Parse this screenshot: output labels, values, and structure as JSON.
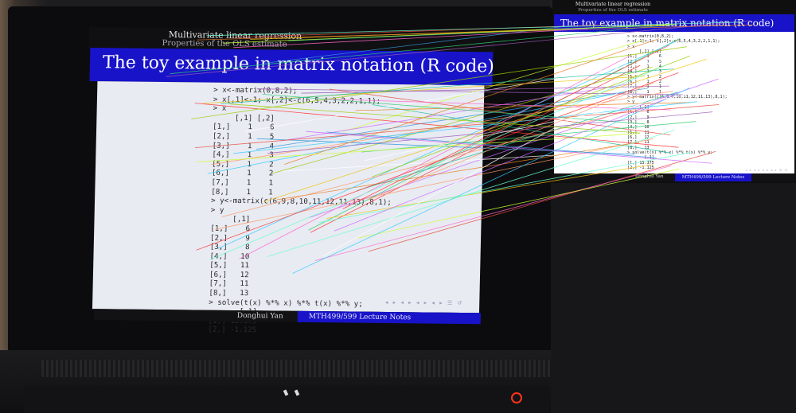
{
  "slide": {
    "header_title": "Multivariate linear regression",
    "header_subtitle": "Properties of the OLS estimate",
    "title": "The toy example in matrix notation (R code)",
    "code": "> x<-matrix(0,8,2);\n> x[,1]<-1; x[,2]<-c(6,5,4,3,2,2,1,1);\n> x\n     [,1] [,2]\n[1,]    1    6\n[2,]    1    5\n[3,]    1    4\n[4,]    1    3\n[5,]    1    2\n[6,]    1    2\n[7,]    1    1\n[8,]    1    1\n> y<-matrix(c(6,9,8,10,11,12,11,13),8,1);\n> y\n     [,1]\n[1,]    6\n[2,]    9\n[3,]    8\n[4,]   10\n[5,]   11\n[6,]   12\n[7,]   11\n[8,]   13\n> solve(t(x) %*% x) %*% t(x) %*% y;\n       [,1]\n[1,] 13.375\n[2,] -1.125",
    "footer_author": "Donghui Yan",
    "footer_course": "MTH499/599 Lecture Notes",
    "nav_symbols": "◂ ▸ ◂ ▸ ◂ ▸ ◂ ▸ ☰ ↺"
  },
  "match_lines": {
    "count": 64,
    "colors": [
      "#e74c3c",
      "#2ecc71",
      "#3498db",
      "#f1c40f",
      "#9b59b6",
      "#1abc9c",
      "#e67e22",
      "#ff66cc",
      "#66ffcc",
      "#ccff33",
      "#ff3333",
      "#33ccff",
      "#cc66ff",
      "#ffffff",
      "#99cc00",
      "#ff9966"
    ]
  },
  "colors": {
    "slide_blue": "#1813c9",
    "slide_body": "#ffffff",
    "power_led": "#ff3320"
  }
}
